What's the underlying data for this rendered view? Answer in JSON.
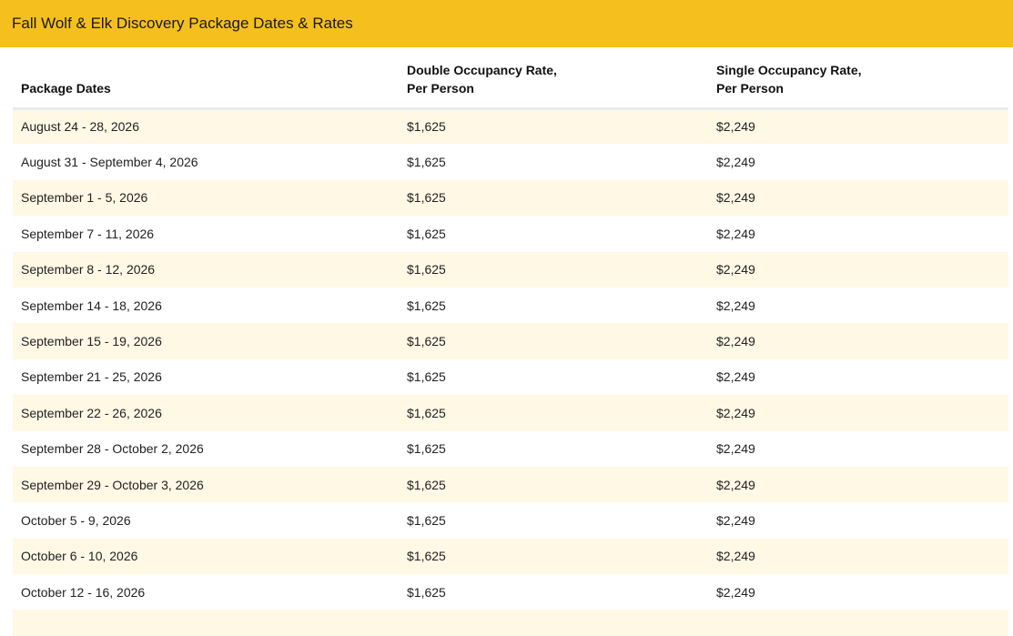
{
  "header": {
    "title": "Fall Wolf & Elk Discovery Package Dates & Rates"
  },
  "table": {
    "columns": [
      {
        "line1": "Package Dates",
        "line2": ""
      },
      {
        "line1": "Double Occupancy Rate,",
        "line2": "Per Person"
      },
      {
        "line1": "Single Occupancy Rate,",
        "line2": "Per Person"
      }
    ],
    "rows": [
      {
        "dates": "August 24 - 28, 2026",
        "double": "$1,625",
        "single": "$2,249"
      },
      {
        "dates": "August 31 - September 4, 2026",
        "double": "$1,625",
        "single": "$2,249"
      },
      {
        "dates": "September 1 - 5, 2026",
        "double": "$1,625",
        "single": "$2,249"
      },
      {
        "dates": "September 7 - 11, 2026",
        "double": "$1,625",
        "single": "$2,249"
      },
      {
        "dates": "September 8 - 12, 2026",
        "double": "$1,625",
        "single": "$2,249"
      },
      {
        "dates": "September 14 - 18, 2026",
        "double": "$1,625",
        "single": "$2,249"
      },
      {
        "dates": "September 15 - 19, 2026",
        "double": "$1,625",
        "single": "$2,249"
      },
      {
        "dates": "September 21 - 25, 2026",
        "double": "$1,625",
        "single": "$2,249"
      },
      {
        "dates": "September 22 - 26, 2026",
        "double": "$1,625",
        "single": "$2,249"
      },
      {
        "dates": "September 28 - October 2, 2026",
        "double": "$1,625",
        "single": "$2,249"
      },
      {
        "dates": "September 29 - October 3, 2026",
        "double": "$1,625",
        "single": "$2,249"
      },
      {
        "dates": "October 5 - 9, 2026",
        "double": "$1,625",
        "single": "$2,249"
      },
      {
        "dates": "October 6 - 10, 2026",
        "double": "$1,625",
        "single": "$2,249"
      },
      {
        "dates": "October 12 - 16, 2026",
        "double": "$1,625",
        "single": "$2,249"
      },
      {
        "dates": "",
        "double": "",
        "single": ""
      }
    ]
  },
  "colors": {
    "title_bar": "#f5bf1e",
    "row_stripe": "#fff8e5"
  }
}
